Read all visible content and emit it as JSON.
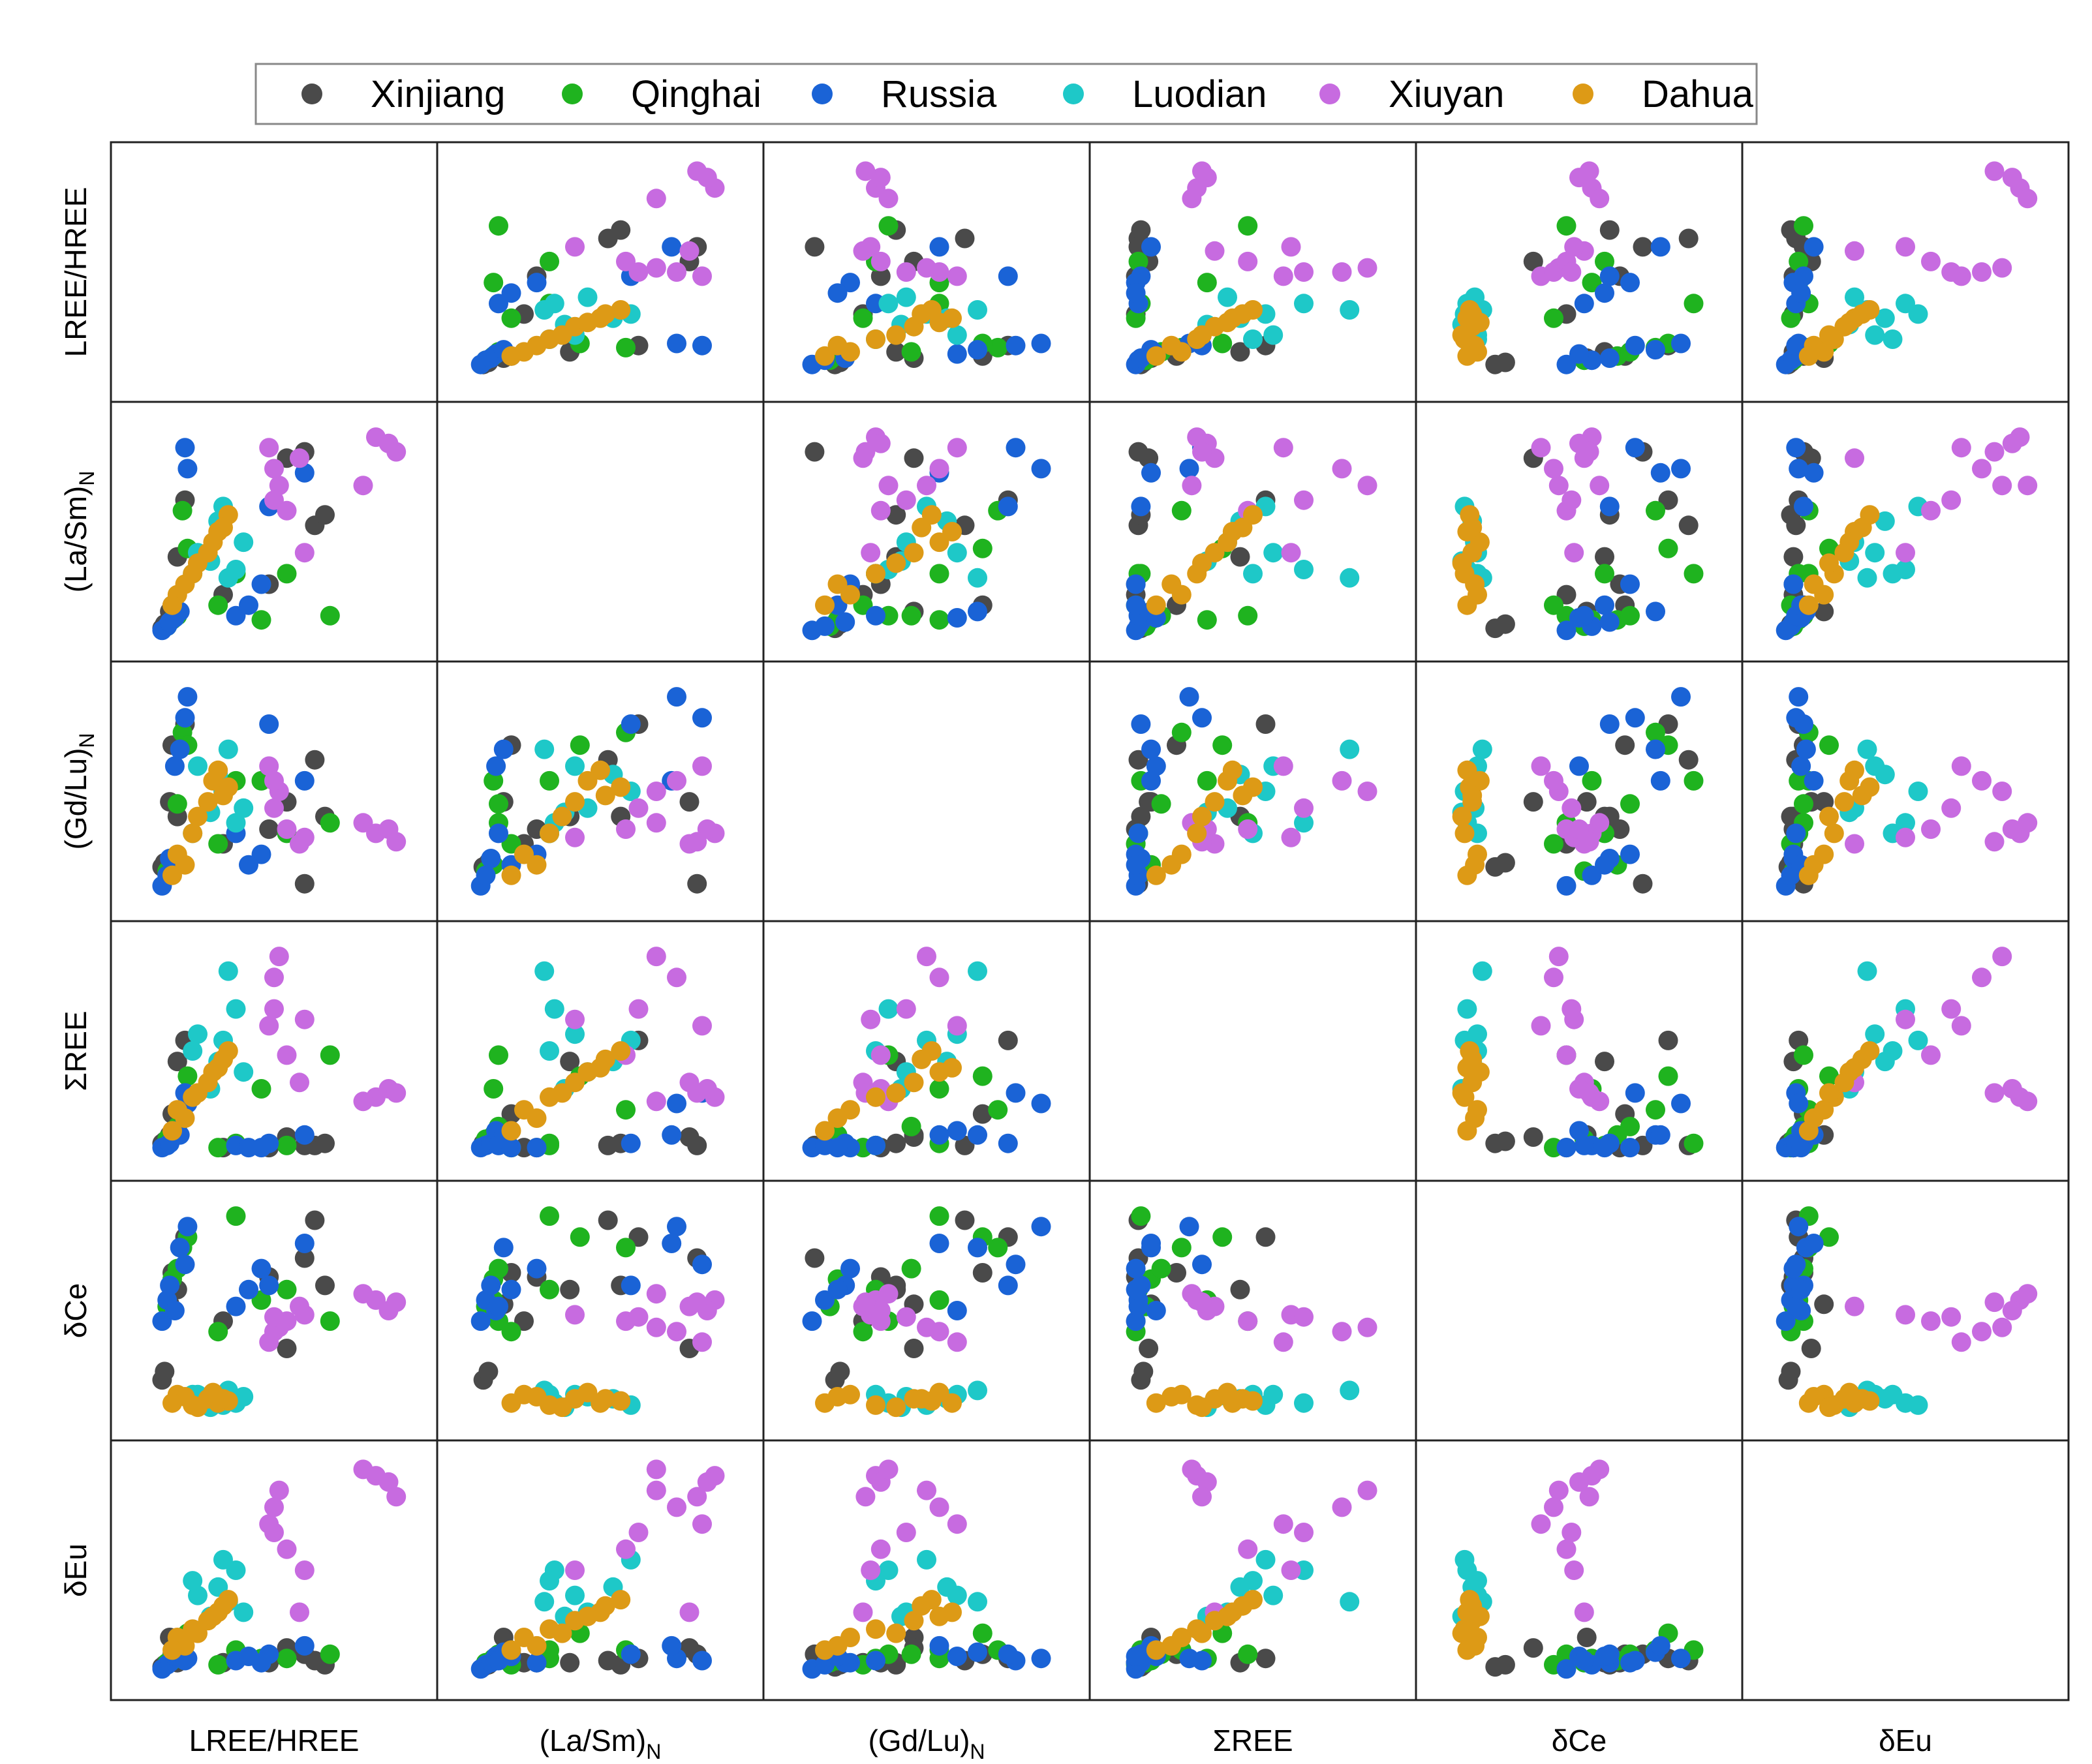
{
  "chart_data": {
    "type": "scatter",
    "subtype": "scatter-matrix",
    "title": "",
    "variables": [
      {
        "name": "LREE/HREE",
        "base": "LREE/HREE",
        "sub": ""
      },
      {
        "name": "(La/Sm)N",
        "base": "(La/Sm)",
        "sub": "N"
      },
      {
        "name": "(Gd/Lu)N",
        "base": "(Gd/Lu)",
        "sub": "N"
      },
      {
        "name": "ΣREE",
        "base": "ΣREE",
        "sub": ""
      },
      {
        "name": "δCe",
        "base": "δCe",
        "sub": ""
      },
      {
        "name": "δEu",
        "base": "δEu",
        "sub": ""
      }
    ],
    "legend": {
      "position": "top",
      "entries": [
        "Xinjiang",
        "Qinghai",
        "Russia",
        "Luodian",
        "Xiuyan",
        "Dahua"
      ]
    },
    "colors": {
      "Xinjiang": "#4a4a4a",
      "Qinghai": "#1fb31f",
      "Russia": "#1a63d6",
      "Luodian": "#1ec8c8",
      "Xiuyan": "#c76be0",
      "Dahua": "#dd9a16"
    },
    "axis_range_units": "normalized 0-1 within each panel",
    "diagonal": "empty",
    "series": [
      {
        "name": "Xinjiang",
        "values": [
          [
            0.06,
            0.04,
            0.14,
            0.06,
            0.17,
            0.04
          ],
          [
            0.07,
            0.06,
            0.16,
            0.07,
            0.21,
            0.05
          ],
          [
            0.09,
            0.12,
            0.45,
            0.1,
            0.53,
            0.18
          ],
          [
            0.1,
            0.15,
            0.72,
            0.2,
            0.68,
            0.1
          ],
          [
            0.12,
            0.38,
            0.38,
            0.45,
            0.6,
            0.06
          ],
          [
            0.15,
            0.65,
            0.82,
            0.55,
            0.85,
            0.08
          ],
          [
            0.55,
            0.85,
            0.45,
            0.09,
            0.32,
            0.13
          ],
          [
            0.66,
            0.53,
            0.65,
            0.05,
            0.93,
            0.07
          ],
          [
            0.7,
            0.58,
            0.38,
            0.06,
            0.62,
            0.05
          ],
          [
            0.62,
            0.88,
            0.06,
            0.05,
            0.75,
            0.1
          ],
          [
            0.48,
            0.25,
            0.32,
            0.04,
            0.66,
            0.06
          ],
          [
            0.3,
            0.2,
            0.25,
            0.04,
            0.45,
            0.06
          ]
        ]
      },
      {
        "name": "Qinghai",
        "values": [
          [
            0.08,
            0.05,
            0.12,
            0.08,
            0.52,
            0.06
          ],
          [
            0.1,
            0.08,
            0.15,
            0.1,
            0.65,
            0.07
          ],
          [
            0.12,
            0.1,
            0.44,
            0.14,
            0.7,
            0.1
          ],
          [
            0.14,
            0.6,
            0.78,
            0.22,
            0.8,
            0.12
          ],
          [
            0.16,
            0.42,
            0.72,
            0.38,
            0.85,
            0.2
          ],
          [
            0.45,
            0.08,
            0.55,
            0.32,
            0.55,
            0.08
          ],
          [
            0.72,
            0.1,
            0.35,
            0.48,
            0.45,
            0.1
          ],
          [
            0.55,
            0.3,
            0.3,
            0.05,
            0.6,
            0.08
          ],
          [
            0.35,
            0.3,
            0.55,
            0.06,
            0.95,
            0.12
          ],
          [
            0.28,
            0.15,
            0.25,
            0.04,
            0.4,
            0.05
          ]
        ]
      },
      {
        "name": "Russia",
        "values": [
          [
            0.06,
            0.03,
            0.05,
            0.04,
            0.45,
            0.03
          ],
          [
            0.08,
            0.05,
            0.1,
            0.05,
            0.55,
            0.05
          ],
          [
            0.09,
            0.07,
            0.18,
            0.06,
            0.62,
            0.06
          ],
          [
            0.11,
            0.09,
            0.62,
            0.12,
            0.5,
            0.09
          ],
          [
            0.13,
            0.12,
            0.7,
            0.1,
            0.8,
            0.11
          ],
          [
            0.15,
            0.9,
            0.85,
            0.3,
            0.72,
            0.07
          ],
          [
            0.16,
            0.8,
            0.95,
            0.25,
            0.9,
            0.08
          ],
          [
            0.48,
            0.62,
            0.82,
            0.06,
            0.62,
            0.1
          ],
          [
            0.45,
            0.25,
            0.2,
            0.04,
            0.7,
            0.06
          ],
          [
            0.35,
            0.1,
            0.3,
            0.05,
            0.52,
            0.07
          ],
          [
            0.4,
            0.15,
            0.15,
            0.04,
            0.6,
            0.09
          ],
          [
            0.62,
            0.78,
            0.55,
            0.1,
            0.82,
            0.14
          ]
        ]
      },
      {
        "name": "Luodian",
        "values": [
          [
            0.2,
            0.4,
            0.62,
            0.58,
            0.1,
            0.38
          ],
          [
            0.28,
            0.55,
            0.58,
            0.45,
            0.08,
            0.42
          ],
          [
            0.35,
            0.32,
            0.35,
            0.7,
            0.06,
            0.5
          ],
          [
            0.32,
            0.28,
            0.7,
            0.88,
            0.12,
            0.35
          ],
          [
            0.3,
            0.62,
            0.5,
            0.55,
            0.05,
            0.55
          ],
          [
            0.38,
            0.45,
            0.42,
            0.4,
            0.09,
            0.3
          ],
          [
            0.25,
            0.36,
            0.4,
            0.32,
            0.04,
            0.28
          ],
          [
            0.18,
            0.3,
            0.3,
            0.5,
            0.1,
            0.45
          ]
        ]
      },
      {
        "name": "Xiuyan",
        "values": [
          [
            0.48,
            0.9,
            0.62,
            0.62,
            0.35,
            0.72
          ],
          [
            0.52,
            0.72,
            0.5,
            0.95,
            0.42,
            0.88
          ],
          [
            0.5,
            0.8,
            0.55,
            0.85,
            0.4,
            0.8
          ],
          [
            0.55,
            0.6,
            0.32,
            0.48,
            0.45,
            0.6
          ],
          [
            0.6,
            0.85,
            0.25,
            0.35,
            0.52,
            0.3
          ],
          [
            0.62,
            0.4,
            0.28,
            0.65,
            0.48,
            0.5
          ],
          [
            0.9,
            0.95,
            0.3,
            0.28,
            0.55,
            0.95
          ],
          [
            0.95,
            0.92,
            0.32,
            0.32,
            0.5,
            0.92
          ],
          [
            0.85,
            0.72,
            0.35,
            0.26,
            0.58,
            0.98
          ],
          [
            0.98,
            0.88,
            0.26,
            0.3,
            0.54,
            0.85
          ],
          [
            0.5,
            0.65,
            0.42,
            0.7,
            0.47,
            0.68
          ]
        ]
      },
      {
        "name": "Dahua",
        "values": [
          [
            0.12,
            0.2,
            0.2,
            0.22,
            0.1,
            0.18
          ],
          [
            0.18,
            0.3,
            0.3,
            0.28,
            0.05,
            0.22
          ],
          [
            0.24,
            0.4,
            0.45,
            0.35,
            0.08,
            0.26
          ],
          [
            0.28,
            0.5,
            0.6,
            0.42,
            0.06,
            0.3
          ],
          [
            0.32,
            0.58,
            0.52,
            0.5,
            0.07,
            0.36
          ],
          [
            0.15,
            0.25,
            0.15,
            0.18,
            0.09,
            0.14
          ],
          [
            0.2,
            0.35,
            0.38,
            0.3,
            0.04,
            0.2
          ],
          [
            0.26,
            0.45,
            0.55,
            0.4,
            0.11,
            0.28
          ],
          [
            0.1,
            0.15,
            0.1,
            0.12,
            0.06,
            0.12
          ],
          [
            0.3,
            0.52,
            0.48,
            0.46,
            0.08,
            0.33
          ]
        ]
      }
    ]
  }
}
